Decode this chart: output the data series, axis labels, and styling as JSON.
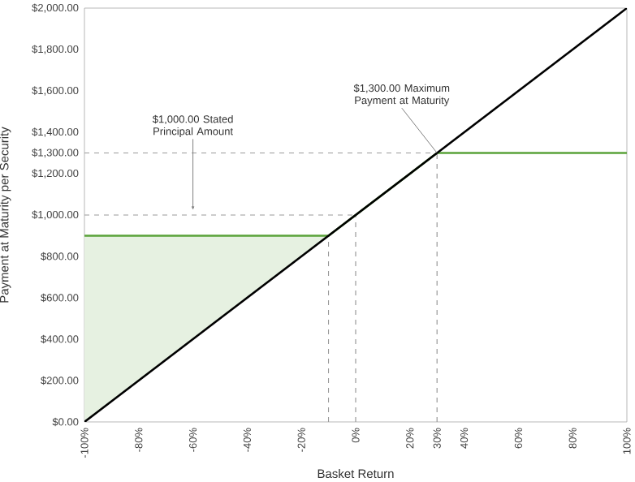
{
  "chart_data": {
    "type": "line",
    "xlabel": "Basket Return",
    "ylabel": "Payment at Maturity per Security",
    "xlim": [
      -100,
      100
    ],
    "ylim": [
      0,
      2000
    ],
    "xticks": [
      {
        "value": -100,
        "label": "-100%"
      },
      {
        "value": -80,
        "label": "-80%"
      },
      {
        "value": -60,
        "label": "-60%"
      },
      {
        "value": -40,
        "label": "-40%"
      },
      {
        "value": -20,
        "label": "-20%"
      },
      {
        "value": 0,
        "label": "0%"
      },
      {
        "value": 20,
        "label": "20%"
      },
      {
        "value": 30,
        "label": "30%"
      },
      {
        "value": 40,
        "label": "40%"
      },
      {
        "value": 60,
        "label": "60%"
      },
      {
        "value": 80,
        "label": "80%"
      },
      {
        "value": 100,
        "label": "100%"
      }
    ],
    "yticks": [
      {
        "value": 0,
        "label": "$0.00"
      },
      {
        "value": 200,
        "label": "$200.00"
      },
      {
        "value": 400,
        "label": "$400.00"
      },
      {
        "value": 600,
        "label": "$600.00"
      },
      {
        "value": 800,
        "label": "$800.00"
      },
      {
        "value": 1000,
        "label": "$1,000.00"
      },
      {
        "value": 1200,
        "label": "$1,200.00"
      },
      {
        "value": 1300,
        "label": "$1,300.00"
      },
      {
        "value": 1400,
        "label": "$1,400.00"
      },
      {
        "value": 1600,
        "label": "$1,600.00"
      },
      {
        "value": 1800,
        "label": "$1,800.00"
      },
      {
        "value": 2000,
        "label": "$2,000.00"
      }
    ],
    "series": [
      {
        "color": "#000000",
        "x": [
          -100,
          100
        ],
        "values": [
          0,
          2000
        ]
      },
      {
        "color": "#5aa33a",
        "x": [
          -100,
          -10,
          30,
          100
        ],
        "values": [
          900,
          900,
          1300,
          1300
        ],
        "lower": [
          0,
          900,
          null,
          null
        ],
        "upper": [
          900,
          900,
          null,
          null
        ]
      }
    ],
    "ref_lines": [
      {
        "axis": "y",
        "value": 1300,
        "color": "#999999",
        "line_style": "dashed"
      },
      {
        "axis": "y",
        "value": 1000,
        "color": "#999999",
        "line_style": "dashed"
      },
      {
        "axis": "x",
        "value": -10,
        "color": "#999999",
        "line_style": "dashed"
      },
      {
        "axis": "x",
        "value": 0,
        "color": "#999999",
        "line_style": "dashed"
      },
      {
        "axis": "x",
        "value": 30,
        "color": "#999999",
        "line_style": "dashed"
      }
    ],
    "annotations": [
      {
        "text": "$1,000.00 Stated Principal Amount",
        "x": -60,
        "y": 1000
      },
      {
        "text": "$1,300.00 Maximum Payment at Maturity",
        "x": 30,
        "y": 1300
      }
    ],
    "marker": "none",
    "line_style": "solid"
  }
}
